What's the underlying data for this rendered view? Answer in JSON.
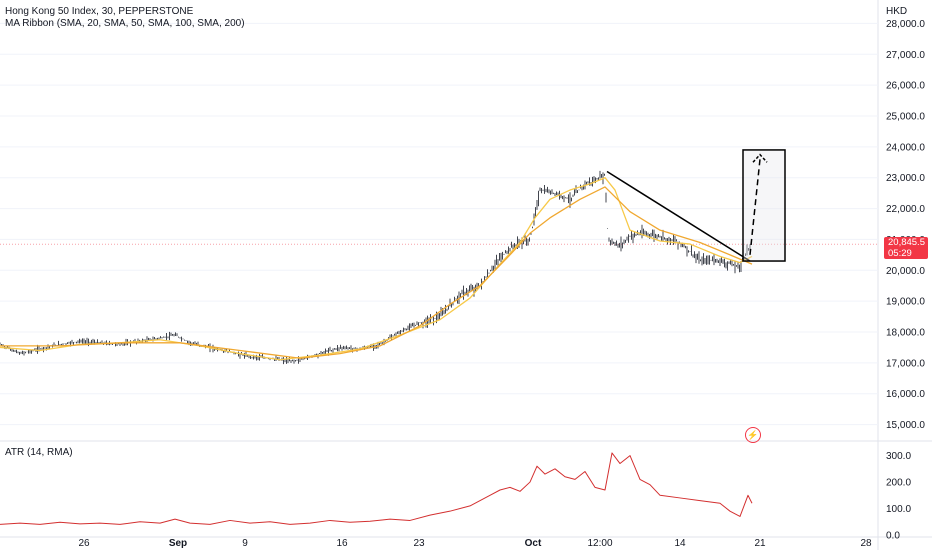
{
  "header": {
    "symbol_line": "Hong Kong 50 Index, 30, PEPPERSTONE",
    "indicator_line": "MA Ribbon (SMA, 20, SMA, 50, SMA, 100, SMA, 200)",
    "atr_label": "ATR (14, RMA)",
    "currency": "HKD"
  },
  "last_price": {
    "value": "20,845.5",
    "countdown": "05:29",
    "color": "#f23645"
  },
  "colors": {
    "candle": "#131722",
    "ma_fast": "#f7c948",
    "ma_slow": "#f0a830",
    "atr": "#d32f2f",
    "grid": "#f0f3fa",
    "price_line": "#f7a1a8"
  },
  "chart_data": [
    {
      "type": "line",
      "title": "Hong Kong 50 Index, 30, PEPPERSTONE",
      "ylim": [
        14500,
        28500
      ],
      "y_ticks": [
        "15,000.0",
        "16,000.0",
        "17,000.0",
        "18,000.0",
        "19,000.0",
        "20,000.0",
        "21,000.0",
        "22,000.0",
        "23,000.0",
        "24,000.0",
        "25,000.0",
        "26,000.0",
        "27,000.0",
        "28,000.0"
      ],
      "x_ticks": [
        "26",
        "Sep",
        "9",
        "16",
        "23",
        "Oct",
        "12:00",
        "14",
        "21",
        "28"
      ],
      "series": [
        {
          "name": "Hong Kong 50 Index",
          "x": [
            0,
            10,
            20,
            40,
            60,
            80,
            100,
            120,
            140,
            160,
            175,
            190,
            210,
            230,
            250,
            270,
            290,
            300,
            320,
            340,
            360,
            380,
            400,
            420,
            440,
            460,
            480,
            500,
            510,
            520,
            530,
            540,
            555,
            570,
            585,
            595,
            605,
            608,
            612,
            620,
            630,
            640,
            660,
            680,
            700,
            715,
            730,
            740,
            748,
            752
          ],
          "values": [
            17600,
            17450,
            17300,
            17450,
            17600,
            17700,
            17650,
            17600,
            17700,
            17800,
            17900,
            17650,
            17500,
            17350,
            17200,
            17150,
            17050,
            17100,
            17300,
            17500,
            17450,
            17600,
            18000,
            18300,
            18500,
            19200,
            19500,
            20400,
            20700,
            20900,
            21000,
            22600,
            22500,
            22300,
            22800,
            22900,
            23100,
            21000,
            20900,
            20800,
            21100,
            21200,
            21100,
            20900,
            20300,
            20350,
            20200,
            20100,
            20700,
            20850
          ]
        },
        {
          "name": "SMA 20",
          "x": [
            0,
            40,
            80,
            120,
            160,
            200,
            240,
            280,
            320,
            360,
            400,
            440,
            470,
            500,
            520,
            535,
            550,
            570,
            590,
            605,
            615,
            630,
            660,
            690,
            720,
            740,
            752
          ],
          "values": [
            17500,
            17400,
            17600,
            17650,
            17750,
            17550,
            17300,
            17100,
            17250,
            17450,
            17900,
            18400,
            19100,
            20200,
            20900,
            21700,
            22300,
            22600,
            22800,
            23000,
            22600,
            21300,
            20950,
            20850,
            20450,
            20250,
            20450
          ]
        },
        {
          "name": "SMA 50",
          "x": [
            0,
            60,
            120,
            180,
            240,
            300,
            340,
            380,
            420,
            450,
            480,
            510,
            530,
            550,
            580,
            605,
            630,
            660,
            700,
            730,
            752
          ],
          "values": [
            17550,
            17550,
            17650,
            17650,
            17400,
            17150,
            17300,
            17550,
            18200,
            18900,
            19500,
            20500,
            21200,
            21700,
            22300,
            22700,
            21900,
            21300,
            20900,
            20500,
            20200
          ]
        }
      ],
      "annotations": {
        "trendline": {
          "from": {
            "x": 607,
            "y": 23200
          },
          "to": {
            "x": 750,
            "y": 20300
          }
        },
        "projection_box": {
          "x0": 743,
          "x1": 785,
          "y0": 20300,
          "y1": 23900
        }
      }
    },
    {
      "type": "line",
      "title": "ATR (14, RMA)",
      "ylim": [
        0,
        340
      ],
      "y_ticks": [
        "300.0",
        "200.0",
        "100.0",
        "0.0"
      ],
      "series": [
        {
          "name": "ATR (14, RMA)",
          "x": [
            0,
            20,
            40,
            60,
            80,
            100,
            120,
            140,
            160,
            175,
            190,
            210,
            230,
            250,
            270,
            290,
            310,
            330,
            350,
            370,
            390,
            410,
            430,
            450,
            470,
            490,
            500,
            510,
            520,
            530,
            537,
            545,
            555,
            565,
            575,
            585,
            595,
            605,
            612,
            620,
            630,
            640,
            650,
            660,
            680,
            700,
            720,
            730,
            740,
            748,
            752
          ],
          "values": [
            40,
            45,
            40,
            48,
            42,
            45,
            40,
            50,
            45,
            60,
            45,
            40,
            55,
            45,
            50,
            40,
            45,
            55,
            48,
            52,
            60,
            55,
            75,
            90,
            110,
            150,
            170,
            180,
            165,
            200,
            260,
            230,
            250,
            220,
            210,
            240,
            180,
            170,
            310,
            270,
            300,
            210,
            190,
            150,
            140,
            130,
            120,
            90,
            70,
            150,
            120
          ]
        }
      ]
    }
  ]
}
